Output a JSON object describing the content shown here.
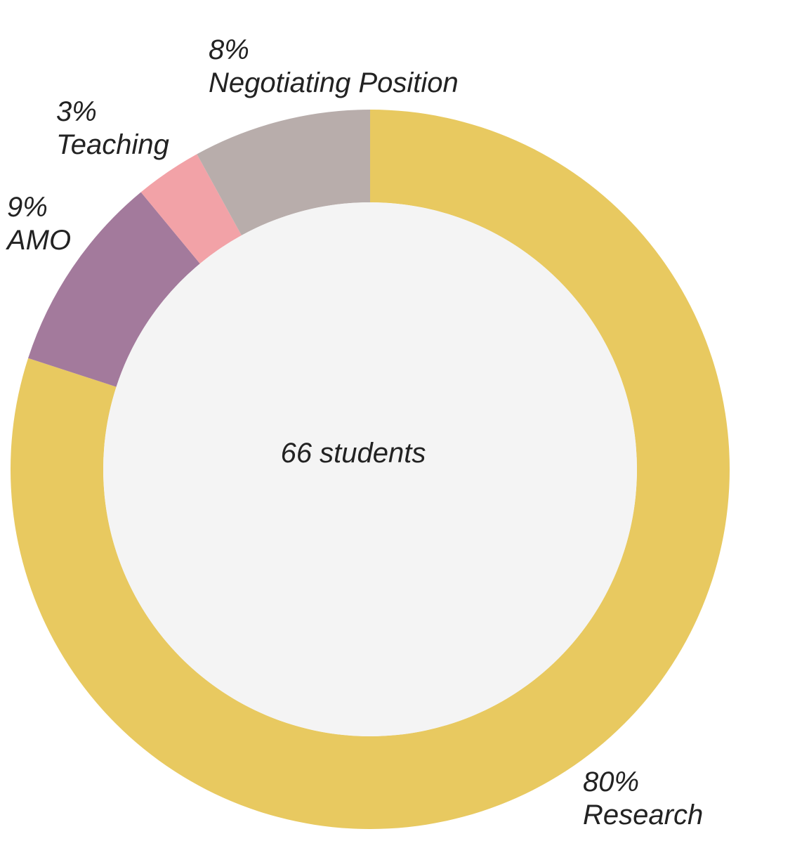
{
  "chart_data": {
    "type": "pie",
    "variant": "donut",
    "center_label": "66 students",
    "hole_color": "#f4f4f4",
    "slices": [
      {
        "name": "Research",
        "value": 80,
        "percent_label": "80%",
        "color": "#e8c960"
      },
      {
        "name": "AMO",
        "value": 9,
        "percent_label": "9%",
        "color": "#a37a9c"
      },
      {
        "name": "Teaching",
        "value": 3,
        "percent_label": "3%",
        "color": "#f2a2a7"
      },
      {
        "name": "Negotiating Position",
        "value": 8,
        "percent_label": "8%",
        "color": "#b8adab"
      }
    ]
  }
}
